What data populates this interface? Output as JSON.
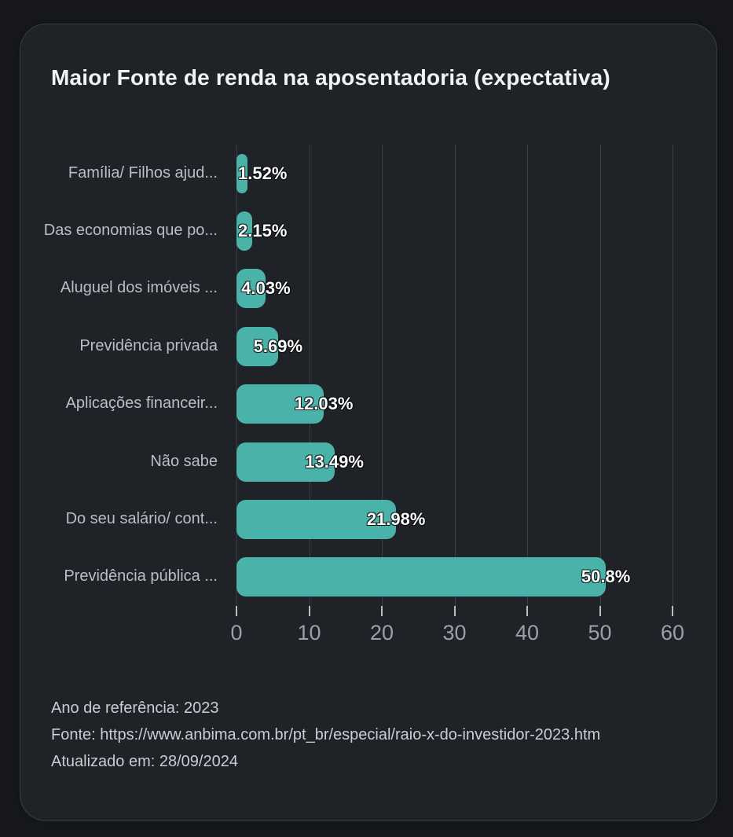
{
  "title": "Maior Fonte de renda na aposentadoria (expectativa)",
  "colors": {
    "background": "#17191d",
    "card": "#1f2227",
    "card_border": "#383d44",
    "bar": "#49b3aa",
    "grid": "#3b3e44",
    "title_text": "#f1f3f5",
    "category_text": "#b9bfc6",
    "tick_text": "#9aa1a8",
    "value_text": "#ffffff",
    "footer_text": "#c9ced4"
  },
  "chart_data": {
    "type": "bar",
    "orientation": "horizontal",
    "title": "Maior Fonte de renda na aposentadoria (expectativa)",
    "categories": [
      "Família/ Filhos ajud...",
      "Das economias que po...",
      "Aluguel dos imóveis ...",
      "Previdência privada",
      "Aplicações financeir...",
      "Não sabe",
      "Do seu salário/ cont...",
      "Previdência pública ..."
    ],
    "values": [
      1.52,
      2.15,
      4.03,
      5.69,
      12.03,
      13.49,
      21.98,
      50.8
    ],
    "value_labels": [
      "1.52%",
      "2.15%",
      "4.03%",
      "5.69%",
      "12.03%",
      "13.49%",
      "21.98%",
      "50.8%"
    ],
    "xlabel": "",
    "ylabel": "",
    "xlim": [
      0,
      60
    ],
    "x_ticks": [
      0,
      10,
      20,
      30,
      40,
      50,
      60
    ],
    "grid": "vertical",
    "legend": "none"
  },
  "footer": {
    "lines": [
      "Ano de referência: 2023",
      "Fonte: https://www.anbima.com.br/pt_br/especial/raio-x-do-investidor-2023.htm",
      "Atualizado em: 28/09/2024"
    ]
  }
}
